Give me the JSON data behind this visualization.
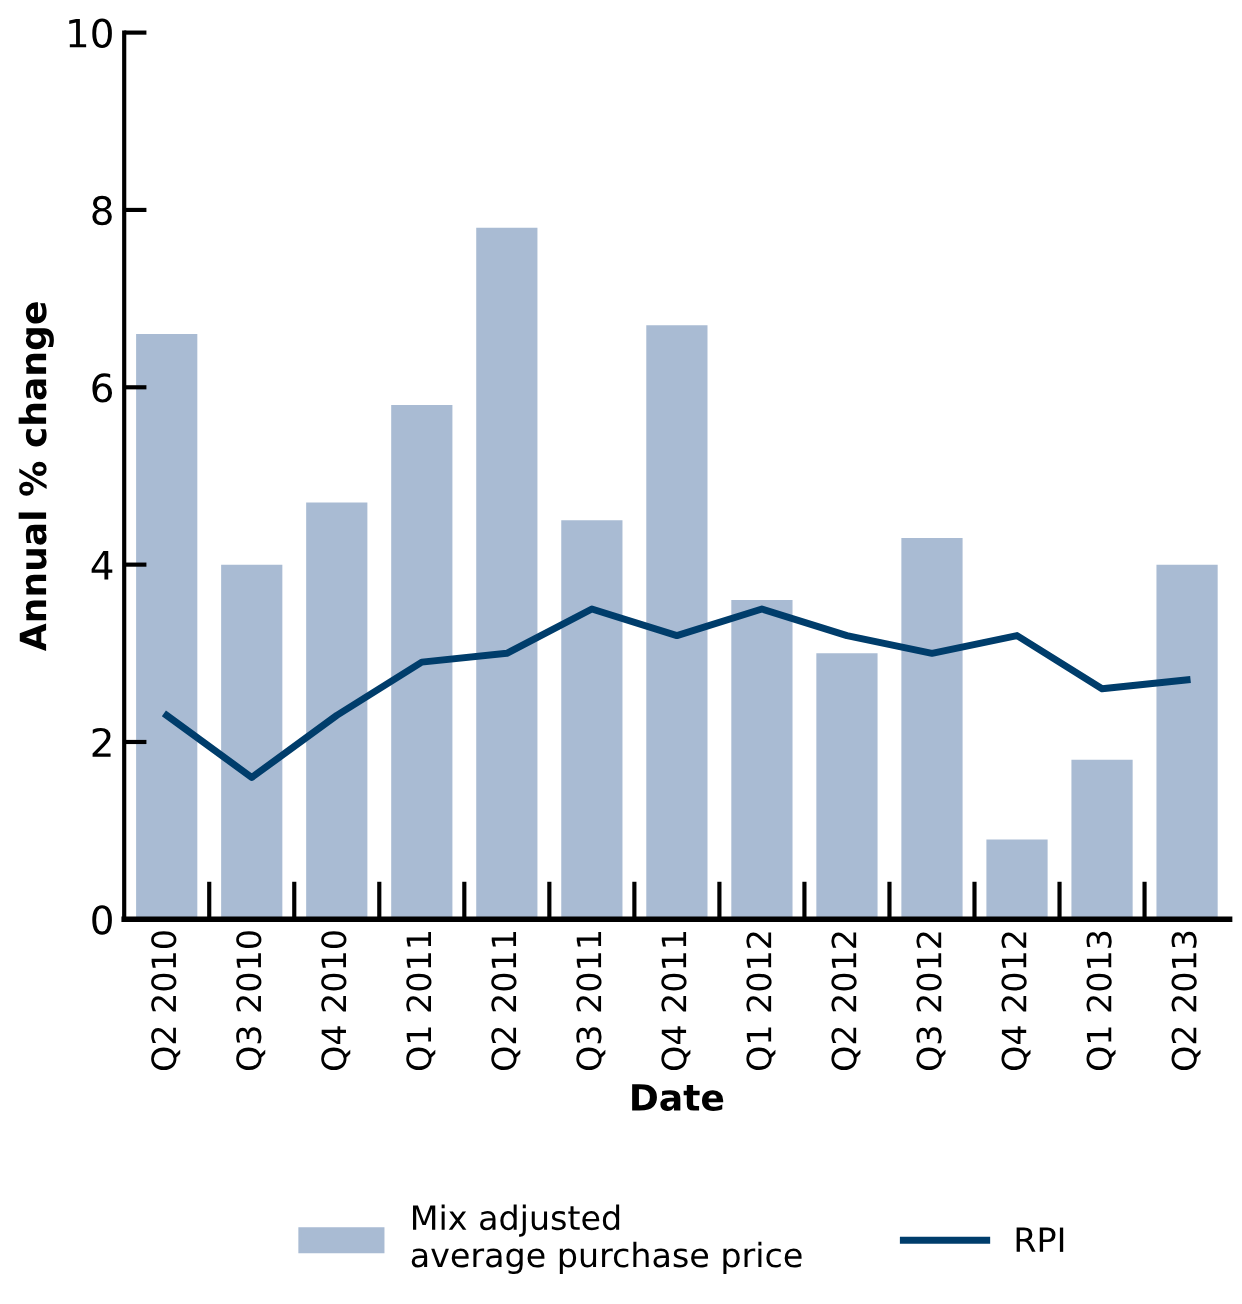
{
  "chart_data": {
    "type": "bar",
    "xlabel": "Date",
    "ylabel": "Annual % change",
    "categories": [
      "Q2 2010",
      "Q3 2010",
      "Q4 2010",
      "Q1 2011",
      "Q2 2011",
      "Q3 2011",
      "Q4 2011",
      "Q1 2012",
      "Q2 2012",
      "Q3 2012",
      "Q4 2012",
      "Q1 2013",
      "Q2 2013"
    ],
    "series": [
      {
        "name": "Mix adjusted\naverage purchase price",
        "color": "#a9bbd3",
        "values": [
          6.6,
          4.0,
          4.7,
          5.8,
          7.8,
          4.5,
          6.7,
          3.6,
          3.0,
          4.3,
          0.9,
          1.8,
          4.0
        ]
      },
      {
        "name": "RPI",
        "type": "line",
        "color": "#003d6b",
        "values": [
          2.3,
          1.6,
          2.3,
          2.9,
          3.0,
          3.5,
          3.2,
          3.5,
          3.2,
          3.0,
          3.2,
          2.6,
          2.7
        ]
      }
    ],
    "ylim": [
      0,
      10
    ],
    "yticks": [
      0,
      2,
      4,
      6,
      8,
      10
    ],
    "grid": false,
    "legend": "bottom",
    "marker": "none",
    "line_style": "solid"
  }
}
